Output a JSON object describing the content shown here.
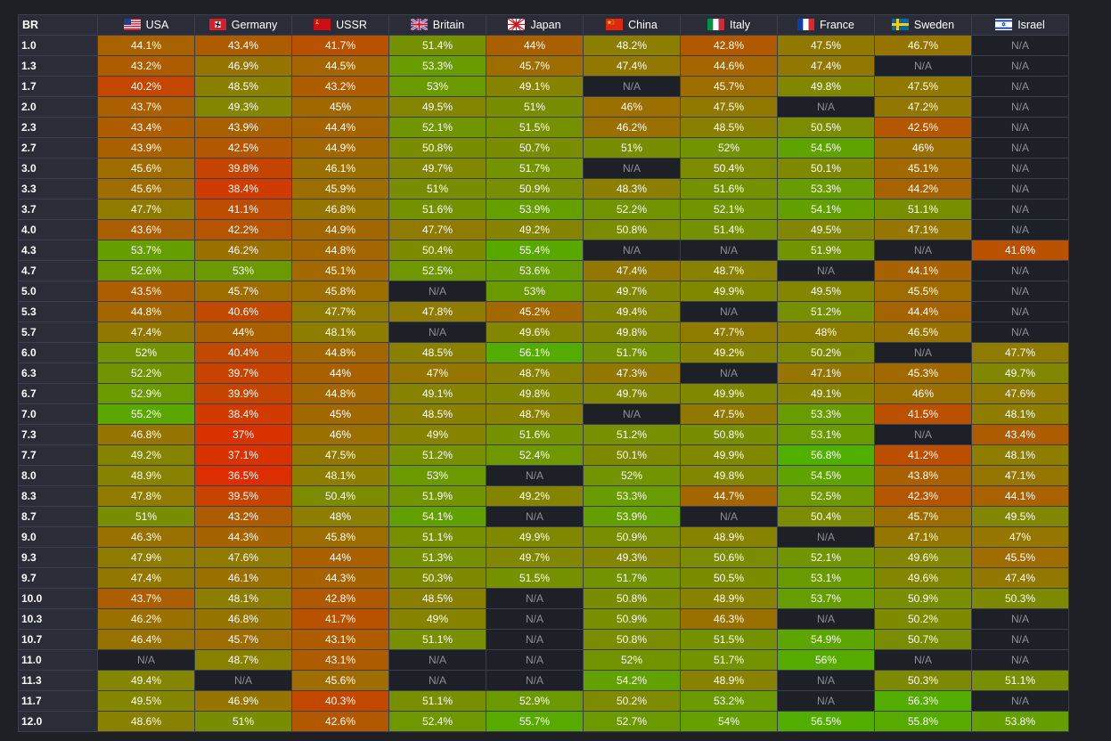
{
  "table": {
    "corner_label": "BR",
    "nations": [
      {
        "name": "USA",
        "icon": "usa-flag-icon"
      },
      {
        "name": "Germany",
        "icon": "germany-flag-icon"
      },
      {
        "name": "USSR",
        "icon": "ussr-flag-icon"
      },
      {
        "name": "Britain",
        "icon": "britain-flag-icon"
      },
      {
        "name": "Japan",
        "icon": "japan-flag-icon"
      },
      {
        "name": "China",
        "icon": "china-flag-icon"
      },
      {
        "name": "Italy",
        "icon": "italy-flag-icon"
      },
      {
        "name": "France",
        "icon": "france-flag-icon"
      },
      {
        "name": "Sweden",
        "icon": "sweden-flag-icon"
      },
      {
        "name": "Israel",
        "icon": "israel-flag-icon"
      }
    ],
    "rows": [
      {
        "br": "1.0",
        "values": [
          "44.1%",
          "43.4%",
          "41.7%",
          "51.4%",
          "44%",
          "48.2%",
          "42.8%",
          "47.5%",
          "46.7%",
          "N/A"
        ]
      },
      {
        "br": "1.3",
        "values": [
          "43.2%",
          "46.9%",
          "44.5%",
          "53.3%",
          "45.7%",
          "47.4%",
          "44.6%",
          "47.4%",
          "N/A",
          "N/A"
        ]
      },
      {
        "br": "1.7",
        "values": [
          "40.2%",
          "48.5%",
          "43.2%",
          "53%",
          "49.1%",
          "N/A",
          "45.7%",
          "49.8%",
          "47.5%",
          "N/A"
        ]
      },
      {
        "br": "2.0",
        "values": [
          "43.7%",
          "49.3%",
          "45%",
          "49.5%",
          "51%",
          "46%",
          "47.5%",
          "N/A",
          "47.2%",
          "N/A"
        ]
      },
      {
        "br": "2.3",
        "values": [
          "43.4%",
          "43.9%",
          "44.4%",
          "52.1%",
          "51.5%",
          "46.2%",
          "48.5%",
          "50.5%",
          "42.5%",
          "N/A"
        ]
      },
      {
        "br": "2.7",
        "values": [
          "43.9%",
          "42.5%",
          "44.9%",
          "50.8%",
          "50.7%",
          "51%",
          "52%",
          "54.5%",
          "46%",
          "N/A"
        ]
      },
      {
        "br": "3.0",
        "values": [
          "45.6%",
          "39.8%",
          "46.1%",
          "49.7%",
          "51.7%",
          "N/A",
          "50.4%",
          "50.1%",
          "45.1%",
          "N/A"
        ]
      },
      {
        "br": "3.3",
        "values": [
          "45.6%",
          "38.4%",
          "45.9%",
          "51%",
          "50.9%",
          "48.3%",
          "51.6%",
          "53.3%",
          "44.2%",
          "N/A"
        ]
      },
      {
        "br": "3.7",
        "values": [
          "47.7%",
          "41.1%",
          "46.8%",
          "51.6%",
          "53.9%",
          "52.2%",
          "52.1%",
          "54.1%",
          "51.1%",
          "N/A"
        ]
      },
      {
        "br": "4.0",
        "values": [
          "43.6%",
          "42.2%",
          "44.9%",
          "47.7%",
          "49.2%",
          "50.8%",
          "51.4%",
          "49.5%",
          "47.1%",
          "N/A"
        ]
      },
      {
        "br": "4.3",
        "values": [
          "53.7%",
          "46.2%",
          "44.8%",
          "50.4%",
          "55.4%",
          "N/A",
          "N/A",
          "51.9%",
          "N/A",
          "41.6%"
        ]
      },
      {
        "br": "4.7",
        "values": [
          "52.6%",
          "53%",
          "45.1%",
          "52.5%",
          "53.6%",
          "47.4%",
          "48.7%",
          "N/A",
          "44.1%",
          "N/A"
        ]
      },
      {
        "br": "5.0",
        "values": [
          "43.5%",
          "45.7%",
          "45.8%",
          "N/A",
          "53%",
          "49.7%",
          "49.9%",
          "49.5%",
          "45.5%",
          "N/A"
        ]
      },
      {
        "br": "5.3",
        "values": [
          "44.8%",
          "40.6%",
          "47.7%",
          "47.8%",
          "45.2%",
          "49.4%",
          "N/A",
          "51.2%",
          "44.4%",
          "N/A"
        ]
      },
      {
        "br": "5.7",
        "values": [
          "47.4%",
          "44%",
          "48.1%",
          "N/A",
          "49.6%",
          "49.8%",
          "47.7%",
          "48%",
          "46.5%",
          "N/A"
        ]
      },
      {
        "br": "6.0",
        "values": [
          "52%",
          "40.4%",
          "44.8%",
          "48.5%",
          "56.1%",
          "51.7%",
          "49.2%",
          "50.2%",
          "N/A",
          "47.7%"
        ]
      },
      {
        "br": "6.3",
        "values": [
          "52.2%",
          "39.7%",
          "44%",
          "47%",
          "48.7%",
          "47.3%",
          "N/A",
          "47.1%",
          "45.3%",
          "49.7%"
        ]
      },
      {
        "br": "6.7",
        "values": [
          "52.9%",
          "39.9%",
          "44.8%",
          "49.1%",
          "49.8%",
          "49.7%",
          "49.9%",
          "49.1%",
          "46%",
          "47.6%"
        ]
      },
      {
        "br": "7.0",
        "values": [
          "55.2%",
          "38.4%",
          "45%",
          "48.5%",
          "48.7%",
          "N/A",
          "47.5%",
          "53.3%",
          "41.5%",
          "48.1%"
        ]
      },
      {
        "br": "7.3",
        "values": [
          "46.8%",
          "37%",
          "46%",
          "49%",
          "51.6%",
          "51.2%",
          "50.8%",
          "53.1%",
          "N/A",
          "43.4%"
        ]
      },
      {
        "br": "7.7",
        "values": [
          "49.2%",
          "37.1%",
          "47.5%",
          "51.2%",
          "52.4%",
          "50.1%",
          "49.9%",
          "56.8%",
          "41.2%",
          "48.1%"
        ]
      },
      {
        "br": "8.0",
        "values": [
          "48.9%",
          "36.5%",
          "48.1%",
          "53%",
          "N/A",
          "52%",
          "49.8%",
          "54.5%",
          "43.8%",
          "47.1%"
        ]
      },
      {
        "br": "8.3",
        "values": [
          "47.8%",
          "39.5%",
          "50.4%",
          "51.9%",
          "49.2%",
          "53.3%",
          "44.7%",
          "52.5%",
          "42.3%",
          "44.1%"
        ]
      },
      {
        "br": "8.7",
        "values": [
          "51%",
          "43.2%",
          "48%",
          "54.1%",
          "N/A",
          "53.9%",
          "N/A",
          "50.4%",
          "45.7%",
          "49.5%"
        ]
      },
      {
        "br": "9.0",
        "values": [
          "46.3%",
          "44.3%",
          "45.8%",
          "51.1%",
          "49.9%",
          "50.9%",
          "48.9%",
          "N/A",
          "47.1%",
          "47%"
        ]
      },
      {
        "br": "9.3",
        "values": [
          "47.9%",
          "47.6%",
          "44%",
          "51.3%",
          "49.7%",
          "49.3%",
          "50.6%",
          "52.1%",
          "49.6%",
          "45.5%"
        ]
      },
      {
        "br": "9.7",
        "values": [
          "47.4%",
          "46.1%",
          "44.3%",
          "50.3%",
          "51.5%",
          "51.7%",
          "50.5%",
          "53.1%",
          "49.6%",
          "47.4%"
        ]
      },
      {
        "br": "10.0",
        "values": [
          "43.7%",
          "48.1%",
          "42.8%",
          "48.5%",
          "N/A",
          "50.8%",
          "48.9%",
          "53.7%",
          "50.9%",
          "50.3%"
        ]
      },
      {
        "br": "10.3",
        "values": [
          "46.2%",
          "46.8%",
          "41.7%",
          "49%",
          "N/A",
          "50.9%",
          "46.3%",
          "N/A",
          "50.2%",
          "N/A"
        ]
      },
      {
        "br": "10.7",
        "values": [
          "46.4%",
          "45.7%",
          "43.1%",
          "51.1%",
          "N/A",
          "50.8%",
          "51.5%",
          "54.9%",
          "50.7%",
          "N/A"
        ]
      },
      {
        "br": "11.0",
        "values": [
          "N/A",
          "48.7%",
          "43.1%",
          "N/A",
          "N/A",
          "52%",
          "51.7%",
          "56%",
          "N/A",
          "N/A"
        ]
      },
      {
        "br": "11.3",
        "values": [
          "49.4%",
          "N/A",
          "45.6%",
          "N/A",
          "N/A",
          "54.2%",
          "48.9%",
          "N/A",
          "50.3%",
          "51.1%"
        ]
      },
      {
        "br": "11.7",
        "values": [
          "49.5%",
          "46.9%",
          "40.3%",
          "51.1%",
          "52.9%",
          "50.2%",
          "53.2%",
          "N/A",
          "56.3%",
          "N/A"
        ]
      },
      {
        "br": "12.0",
        "values": [
          "48.6%",
          "51%",
          "42.6%",
          "52.4%",
          "55.7%",
          "52.7%",
          "54%",
          "56.5%",
          "55.8%",
          "53.8%"
        ]
      }
    ]
  },
  "colors": {
    "page_background": "#1e2026",
    "header_background": "#2a2c38",
    "na_background": "#1e2027",
    "grid_line": "#3a3d4a",
    "scale_low": "#dc2e00",
    "scale_mid": "#8a8000",
    "scale_high": "#4fb000"
  }
}
